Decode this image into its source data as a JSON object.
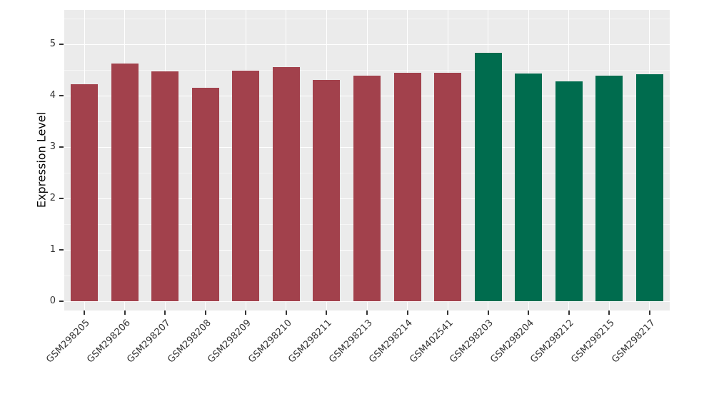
{
  "chart_data": {
    "type": "bar",
    "title": "",
    "xlabel": "",
    "ylabel": "Expression Level",
    "ylim": [
      0,
      5
    ],
    "yticks": [
      0,
      1,
      2,
      3,
      4,
      5
    ],
    "grid": "white major and minor horizontal gridlines, white vertical major gridlines, gray panel",
    "legend": "none",
    "panel_bg": "#EBEBEB",
    "grid_color": "#FFFFFF",
    "axis_text_color": "#333333",
    "categories": [
      "GSM298205",
      "GSM298206",
      "GSM298207",
      "GSM298208",
      "GSM298209",
      "GSM298210",
      "GSM298211",
      "GSM298213",
      "GSM298214",
      "GSM402541",
      "GSM298203",
      "GSM298204",
      "GSM298212",
      "GSM298215",
      "GSM298217"
    ],
    "values": [
      4.22,
      4.63,
      4.47,
      4.15,
      4.48,
      4.55,
      4.31,
      4.39,
      4.45,
      4.44,
      4.83,
      4.43,
      4.28,
      4.39,
      4.41
    ],
    "bar_colors": [
      "#A2414C",
      "#A2414C",
      "#A2414C",
      "#A2414C",
      "#A2414C",
      "#A2414C",
      "#A2414C",
      "#A2414C",
      "#A2414C",
      "#A2414C",
      "#006C4E",
      "#006C4E",
      "#006C4E",
      "#006C4E",
      "#006C4E"
    ],
    "group_colors": {
      "left_group": "#A2414C",
      "right_group": "#006C4E"
    }
  }
}
